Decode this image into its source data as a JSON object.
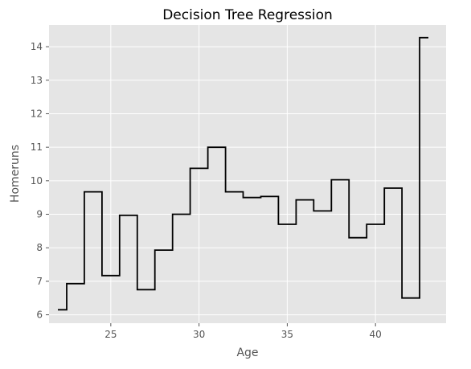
{
  "chart_data": {
    "type": "line",
    "style": "step",
    "title": "Decision Tree Regression",
    "xlabel": "Age",
    "ylabel": "Homeruns",
    "xlim": [
      21.5,
      44.0
    ],
    "ylim": [
      5.75,
      14.65
    ],
    "xticks": [
      25,
      30,
      35,
      40
    ],
    "yticks": [
      6,
      7,
      8,
      9,
      10,
      11,
      12,
      13,
      14
    ],
    "grid": true,
    "background_color": "#e5e5e5",
    "line_color": "#000000",
    "x": [
      22.0,
      22.5,
      22.5,
      23.5,
      23.5,
      24.5,
      24.5,
      25.5,
      25.5,
      26.5,
      26.5,
      27.5,
      27.5,
      28.5,
      28.5,
      29.5,
      29.5,
      30.5,
      30.5,
      31.5,
      31.5,
      32.5,
      32.5,
      33.5,
      33.5,
      34.5,
      34.5,
      35.5,
      35.5,
      36.5,
      36.5,
      37.5,
      37.5,
      38.5,
      38.5,
      39.5,
      39.5,
      40.5,
      40.5,
      41.5,
      41.5,
      42.5,
      42.5,
      43.0
    ],
    "y": [
      6.15,
      6.15,
      6.93,
      6.93,
      9.67,
      9.67,
      7.17,
      7.17,
      8.97,
      8.97,
      6.75,
      6.75,
      7.93,
      7.93,
      9.0,
      9.0,
      10.37,
      10.37,
      11.0,
      11.0,
      9.67,
      9.67,
      9.5,
      9.5,
      9.53,
      9.53,
      8.7,
      8.7,
      9.43,
      9.43,
      9.1,
      9.1,
      10.03,
      10.03,
      8.3,
      8.3,
      8.7,
      8.7,
      9.78,
      9.78,
      6.5,
      6.5,
      14.27,
      14.27
    ]
  }
}
